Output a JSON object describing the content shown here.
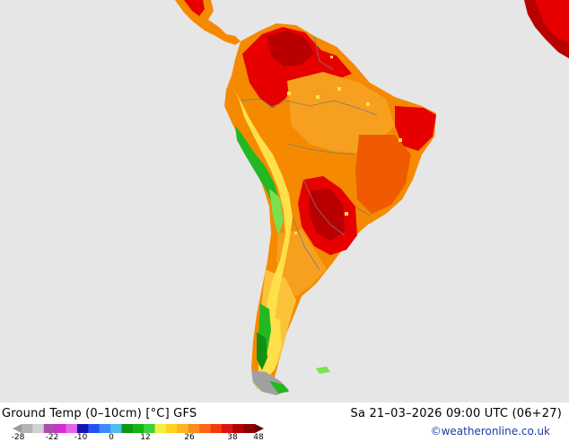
{
  "map": {
    "title": "Ground Temp (0–10cm) [°C] GFS",
    "datetime": "Sa 21–03–2026 09:00 UTC (06+27)",
    "credit": "©weatheronline.co.uk",
    "region": "South America",
    "colors": {
      "background": "#e6e6e6",
      "dark_red": "#b80000",
      "red": "#e60000",
      "orange_red": "#f05a00",
      "orange": "#f58a00",
      "light_orange": "#f7a020",
      "yellow_orange": "#fcc23c",
      "yellow": "#fde04a",
      "light_green": "#7be04e",
      "green": "#22b822",
      "dark_green": "#129012",
      "gray": "#a0a0a0"
    }
  },
  "legend": {
    "tick_labels": [
      "-28",
      "-22",
      "-10",
      "0",
      "12",
      "26",
      "38",
      "48"
    ],
    "swatches": [
      "#9c9c9c",
      "#b4b4b4",
      "#d2d2d2",
      "#ac4cac",
      "#d22cd2",
      "#e664e6",
      "#1414b4",
      "#2850f0",
      "#3c8cff",
      "#4cbef0",
      "#109610",
      "#14b414",
      "#3cd23c",
      "#f0f03c",
      "#ffd21e",
      "#ffb41e",
      "#ff8c1e",
      "#ff6414",
      "#f03c0a",
      "#dc1414",
      "#b40000",
      "#8c0000",
      "#640000"
    ]
  }
}
